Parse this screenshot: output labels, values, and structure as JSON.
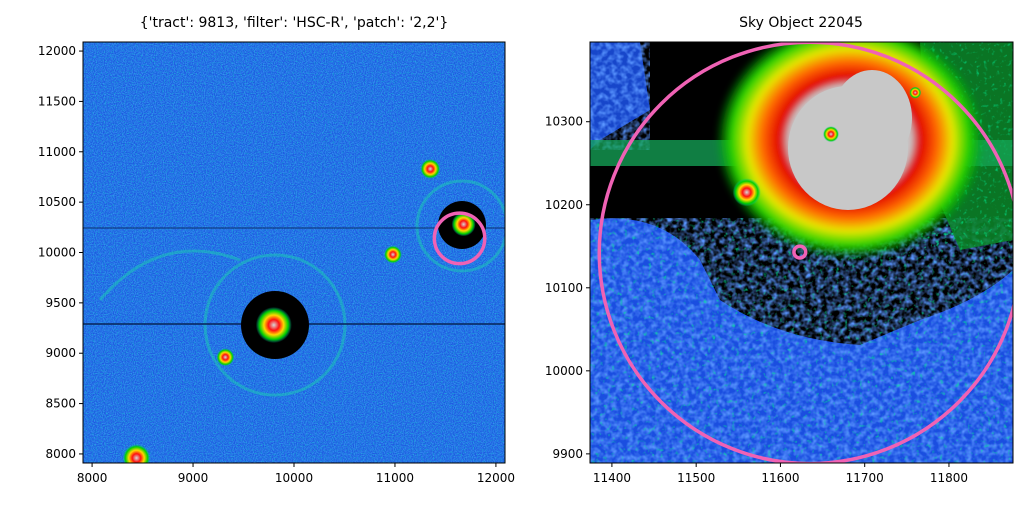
{
  "chart_data": [
    {
      "type": "heatmap",
      "title": "{'tract': 9813, 'filter': 'HSC-R', 'patch': '2,2'}",
      "xlabel": "",
      "ylabel": "",
      "xlim": [
        7910,
        12090
      ],
      "ylim": [
        7910,
        12090
      ],
      "xticks": [
        8000,
        9000,
        10000,
        11000,
        12000
      ],
      "xtick_labels": [
        "8000",
        "9000",
        "10000",
        "11000",
        "12000"
      ],
      "yticks": [
        8000,
        8500,
        9000,
        9500,
        10000,
        10500,
        11000,
        11500,
        12000
      ],
      "ytick_labels": [
        "8000",
        "8500",
        "9000",
        "9500",
        "10000",
        "10500",
        "11000",
        "11500",
        "12000"
      ],
      "grid": false,
      "colormap": "nipy_spectral-like (black, purple, blue, cyan, green, yellow, red, grey)",
      "marker": {
        "shape": "circle",
        "center": [
          11640,
          10140
        ],
        "radius": 250,
        "color": "#f062b5"
      },
      "bright_sources": [
        {
          "x": 9800,
          "y": 9280
        },
        {
          "x": 11680,
          "y": 10280
        },
        {
          "x": 8440,
          "y": 7960
        },
        {
          "x": 11350,
          "y": 10830
        },
        {
          "x": 10980,
          "y": 9980
        },
        {
          "x": 9320,
          "y": 8960
        }
      ]
    },
    {
      "type": "heatmap",
      "title": "Sky Object 22045",
      "xlabel": "",
      "ylabel": "",
      "xlim": [
        11374,
        11876
      ],
      "ylim": [
        9889,
        10396
      ],
      "xticks": [
        11400,
        11500,
        11600,
        11700,
        11800
      ],
      "xtick_labels": [
        "11400",
        "11500",
        "11600",
        "11700",
        "11800"
      ],
      "yticks": [
        9900,
        10000,
        10100,
        10200,
        10300
      ],
      "ytick_labels": [
        "9900",
        "10000",
        "10100",
        "10200",
        "10300"
      ],
      "grid": false,
      "colormap": "nipy_spectral-like (black, purple, blue, cyan, green, yellow, red, grey)",
      "markers": [
        {
          "shape": "circle",
          "center": [
            11635,
            10142
          ],
          "radius": 250,
          "color": "#f062b5"
        },
        {
          "shape": "circle",
          "center": [
            11623,
            10143
          ],
          "radius": 7,
          "color": "#f062b5"
        }
      ],
      "bright_sources": [
        {
          "x": 11660,
          "y": 10285
        },
        {
          "x": 11560,
          "y": 10215
        },
        {
          "x": 11760,
          "y": 10335
        }
      ]
    }
  ]
}
